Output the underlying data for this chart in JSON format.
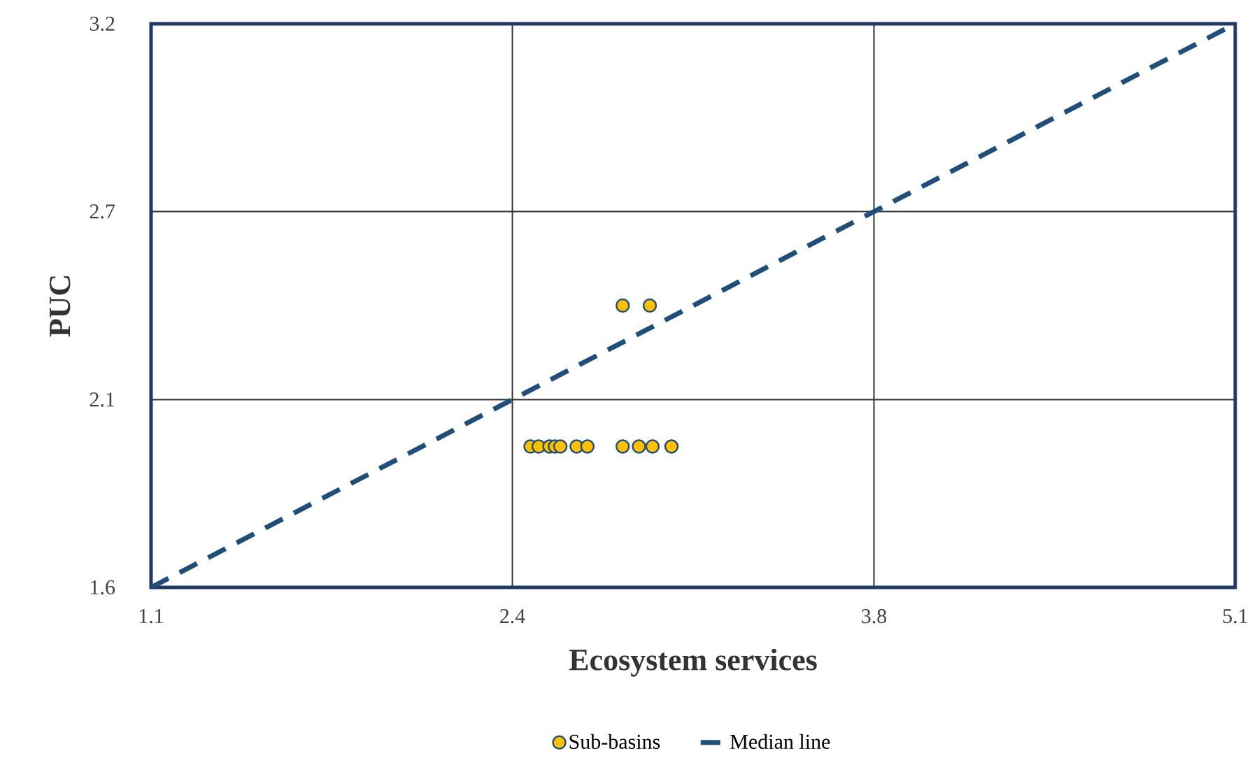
{
  "chart_data": {
    "type": "scatter",
    "xlabel": "Ecosystem services",
    "ylabel": "PUC",
    "xlim": [
      1.1,
      5.1
    ],
    "ylim": [
      1.6,
      3.2
    ],
    "xticks": [
      1.1,
      {
        "value": 2.433,
        "label": "2.4"
      },
      {
        "value": 3.767,
        "label": "3.8"
      },
      5.1
    ],
    "yticks": [
      1.6,
      {
        "value": 2.133,
        "label": "2.1"
      },
      {
        "value": 2.667,
        "label": "2.7"
      },
      3.2
    ],
    "grid": true,
    "legend": "bottom",
    "series": [
      {
        "name": "Sub-basins",
        "marker": "circle",
        "color": "#ffc000",
        "x": [
          2.84,
          2.94,
          2.5,
          2.53,
          2.57,
          2.59,
          2.61,
          2.67,
          2.71,
          2.84,
          2.9,
          2.95,
          3.02
        ],
        "values": [
          2.4,
          2.4,
          2.0,
          2.0,
          2.0,
          2.0,
          2.0,
          2.0,
          2.0,
          2.0,
          2.0,
          2.0,
          2.0
        ]
      },
      {
        "name": "Median line",
        "type": "line",
        "marker": "none",
        "line_style": "dashed",
        "color": "#1f4e79",
        "x": [
          1.1,
          5.1
        ],
        "values": [
          1.6,
          3.2
        ]
      }
    ]
  }
}
